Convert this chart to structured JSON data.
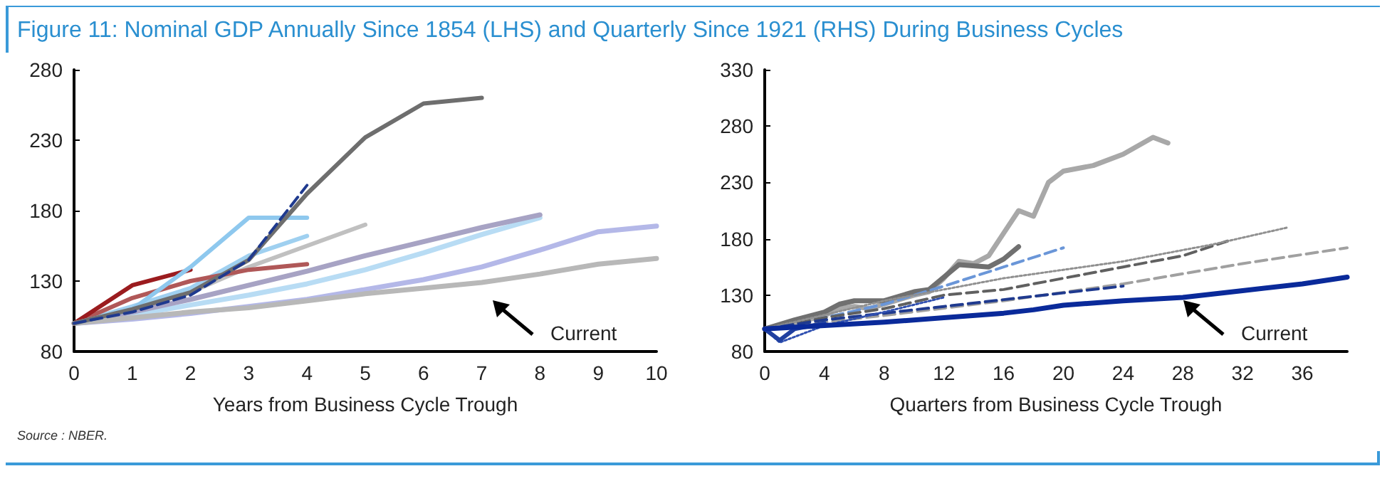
{
  "chart_data": [
    {
      "type": "line",
      "title": "Figure 11: Nominal GDP Annually Since 1854 (LHS) and Quarterly Since 1921 (RHS) During Business Cycles",
      "xlabel": "Years from Business Cycle Trough",
      "xlim": [
        0,
        10
      ],
      "xticks": [
        0,
        1,
        2,
        3,
        4,
        5,
        6,
        7,
        8,
        9,
        10
      ],
      "ylim": [
        80,
        280
      ],
      "yticks": [
        80,
        130,
        180,
        230,
        280
      ],
      "marker": "none",
      "annotations": [
        "Current",
        "Source : NBER."
      ],
      "series": [
        {
          "color": "#c0c0c0",
          "x": [
            0,
            1,
            2,
            3,
            4,
            5
          ],
          "values": [
            100,
            110,
            122,
            140,
            155,
            170
          ]
        },
        {
          "color": "#b8dcf4",
          "x": [
            0,
            1,
            2,
            3,
            4,
            5,
            6,
            7,
            8
          ],
          "values": [
            100,
            106,
            113,
            120,
            128,
            138,
            150,
            163,
            175
          ]
        },
        {
          "color": "#a7a3c4",
          "x": [
            0,
            1,
            2,
            3,
            4,
            5,
            6,
            7,
            8
          ],
          "values": [
            100,
            108,
            117,
            127,
            137,
            148,
            158,
            168,
            177
          ]
        },
        {
          "color": "#b4b8e8",
          "x": [
            0,
            1,
            2,
            3,
            4,
            5,
            6,
            7,
            8,
            9,
            10
          ],
          "values": [
            100,
            103,
            107,
            112,
            117,
            124,
            131,
            140,
            152,
            165,
            169
          ]
        },
        {
          "color": "#b8b8b8",
          "x": [
            0,
            1,
            2,
            3,
            4,
            5,
            6,
            7,
            8,
            9,
            10
          ],
          "values": [
            100,
            104,
            108,
            111,
            116,
            121,
            125,
            129,
            135,
            142,
            146
          ]
        },
        {
          "color": "#9fd0f0",
          "x": [
            0,
            1,
            2,
            3,
            4
          ],
          "values": [
            100,
            112,
            125,
            148,
            162
          ]
        },
        {
          "color": "#b05858",
          "x": [
            0,
            1,
            2,
            3,
            4
          ],
          "values": [
            100,
            118,
            130,
            138,
            142
          ]
        },
        {
          "color": "#9b1c1f",
          "x": [
            0,
            1,
            2
          ],
          "values": [
            100,
            127,
            138
          ]
        },
        {
          "color": "#8ec8ee",
          "x": [
            0,
            1,
            2,
            3,
            4
          ],
          "values": [
            100,
            110,
            140,
            175,
            175
          ]
        },
        {
          "color": "#6e6e6e",
          "x": [
            0,
            1,
            2,
            3,
            4,
            5,
            6,
            7
          ],
          "values": [
            100,
            110,
            122,
            145,
            192,
            232,
            256,
            260
          ]
        },
        {
          "color": "#1f3a8f",
          "line_style": "dashed",
          "x": [
            0,
            1,
            2,
            3,
            4
          ],
          "values": [
            100,
            108,
            120,
            145,
            198
          ]
        }
      ]
    },
    {
      "type": "line",
      "xlabel": "Quarters from Business Cycle Trough",
      "xlim": [
        0,
        39
      ],
      "xticks": [
        0,
        4,
        8,
        12,
        16,
        20,
        24,
        28,
        32,
        36
      ],
      "ylim": [
        80,
        330
      ],
      "yticks": [
        80,
        130,
        180,
        230,
        280,
        330
      ],
      "marker": "none",
      "annotations": [
        "Current"
      ],
      "series": [
        {
          "color": "#a8a8a8",
          "x": [
            0,
            2,
            4,
            5,
            6,
            7,
            8,
            10,
            11,
            12,
            13,
            14,
            15,
            16,
            17,
            18,
            19,
            20,
            22,
            24,
            26,
            27
          ],
          "values": [
            100,
            105,
            112,
            118,
            120,
            118,
            122,
            130,
            133,
            145,
            160,
            158,
            165,
            185,
            205,
            200,
            230,
            240,
            245,
            255,
            270,
            265
          ]
        },
        {
          "color": "#707070",
          "x": [
            0,
            2,
            4,
            5,
            6,
            8,
            10,
            11,
            13,
            15,
            16,
            17
          ],
          "values": [
            100,
            108,
            115,
            122,
            125,
            125,
            133,
            135,
            157,
            155,
            162,
            173
          ]
        },
        {
          "color": "#6a96d8",
          "line_style": "dashed",
          "x": [
            0,
            4,
            8,
            12,
            16,
            20
          ],
          "values": [
            100,
            110,
            122,
            138,
            155,
            172
          ]
        },
        {
          "color": "#606060",
          "line_style": "dashed",
          "x": [
            0,
            4,
            8,
            12,
            16,
            20,
            24,
            28,
            31
          ],
          "values": [
            100,
            110,
            118,
            130,
            135,
            145,
            155,
            165,
            178
          ]
        },
        {
          "color": "#a0a0a0",
          "line_style": "dashed",
          "x": [
            0,
            8,
            16,
            24,
            32,
            39
          ],
          "values": [
            100,
            112,
            125,
            140,
            158,
            172
          ]
        },
        {
          "color": "#909090",
          "line_style": "dotted",
          "x": [
            0,
            8,
            16,
            24,
            30,
            35
          ],
          "values": [
            100,
            125,
            145,
            160,
            175,
            190
          ]
        },
        {
          "color": "#1f3a8f",
          "line_style": "dashed",
          "x": [
            0,
            4,
            8,
            12,
            16,
            20,
            24
          ],
          "values": [
            100,
            108,
            114,
            120,
            126,
            132,
            138
          ]
        },
        {
          "color": "#3050b0",
          "line_style": "dotted",
          "x": [
            0,
            1,
            4,
            8,
            12
          ],
          "values": [
            100,
            88,
            103,
            115,
            128
          ]
        },
        {
          "color": "#2040a0",
          "x": [
            0,
            1,
            2,
            4
          ],
          "values": [
            100,
            90,
            100,
            105
          ]
        },
        {
          "color": "#0a2a9a",
          "x": [
            0,
            4,
            8,
            12,
            16,
            18,
            20,
            24,
            28,
            32,
            36,
            39
          ],
          "values": [
            100,
            103,
            106,
            110,
            114,
            117,
            121,
            125,
            128,
            134,
            140,
            146
          ]
        }
      ]
    }
  ]
}
